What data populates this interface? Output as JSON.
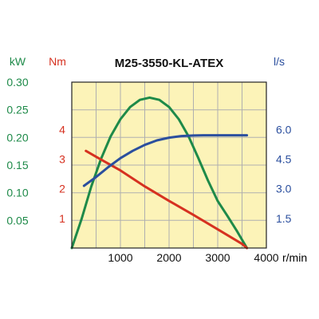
{
  "chart_data": {
    "type": "line",
    "title": "M25-3550-KL-ATEX",
    "x_unit": "r/min",
    "xlim": [
      0,
      4000
    ],
    "x_ticks": [
      "1000",
      "2000",
      "3000",
      "4000"
    ],
    "grid": true,
    "colors": {
      "plot_bg": "#FCF3B8",
      "grid": "#AFAFAF",
      "frame": "#222222",
      "power": "#1E8A49",
      "torque": "#D63120",
      "flow": "#2B4F9E"
    },
    "axes": {
      "power": {
        "unit": "kW",
        "ylim": [
          0,
          0.3
        ],
        "ticks": [
          "0.05",
          "0.10",
          "0.15",
          "0.20",
          "0.25",
          "0.30"
        ]
      },
      "torque": {
        "unit": "Nm",
        "ylim": [
          0,
          5.6
        ],
        "ticks": [
          "1",
          "2",
          "3",
          "4"
        ]
      },
      "flow": {
        "unit": "l/s",
        "ylim": [
          0,
          8.4
        ],
        "ticks": [
          "1.5",
          "3.0",
          "4.5",
          "6.0"
        ]
      }
    },
    "series": [
      {
        "axis": "power",
        "x": [
          0,
          200,
          400,
          600,
          800,
          1000,
          1200,
          1400,
          1600,
          1800,
          2000,
          2200,
          2400,
          2600,
          2800,
          3000,
          3200,
          3400,
          3600
        ],
        "y": [
          0.0,
          0.052,
          0.111,
          0.161,
          0.202,
          0.233,
          0.255,
          0.268,
          0.272,
          0.268,
          0.255,
          0.233,
          0.202,
          0.163,
          0.122,
          0.085,
          0.058,
          0.03,
          0.0
        ]
      },
      {
        "axis": "torque",
        "x": [
          290,
          500,
          1000,
          1500,
          2000,
          2500,
          3000,
          3500,
          3600
        ],
        "y": [
          3.28,
          3.08,
          2.62,
          2.08,
          1.59,
          1.12,
          0.63,
          0.14,
          0.0
        ]
      },
      {
        "axis": "flow",
        "x": [
          250,
          500,
          750,
          1000,
          1250,
          1500,
          1750,
          2000,
          2250,
          2500,
          2750,
          3000,
          3250,
          3500,
          3600
        ],
        "y": [
          3.15,
          3.6,
          4.1,
          4.55,
          4.92,
          5.22,
          5.45,
          5.59,
          5.67,
          5.7,
          5.71,
          5.71,
          5.71,
          5.71,
          5.71
        ]
      }
    ]
  }
}
